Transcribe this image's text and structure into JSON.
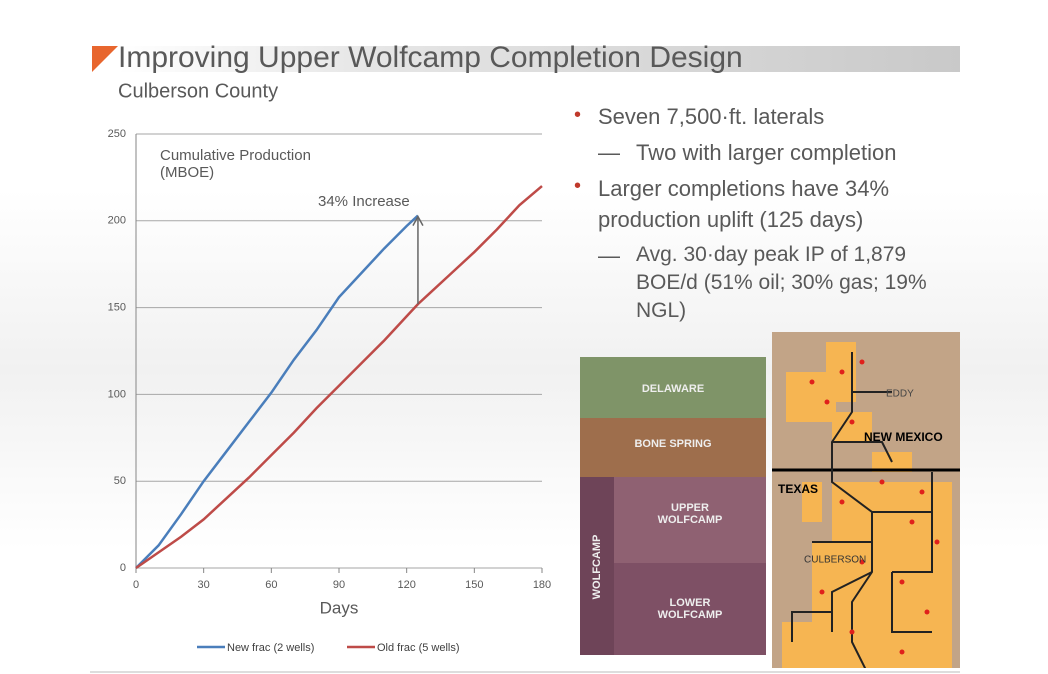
{
  "slide": {
    "title": "Improving Upper Wolfcamp Completion Design",
    "subtitle": "Culberson County",
    "bullets": [
      {
        "text": "Seven 7,500·ft. laterals",
        "sub": [
          "Two with larger completion"
        ]
      },
      {
        "text": "Larger completions have 34% production uplift (125 days)",
        "sub": [
          "Avg. 30·day peak IP of 1,879 BOE/d (51% oil; 30% gas; 19% NGL)"
        ]
      }
    ]
  },
  "chart_data": {
    "type": "line",
    "annotations": [
      "Cumulative Production (MBOE)",
      "34% Increase"
    ],
    "x_label": "Days",
    "x": [
      0,
      10,
      20,
      30,
      40,
      50,
      60,
      70,
      80,
      90,
      100,
      110,
      120,
      125,
      130,
      140,
      150,
      160,
      170,
      180
    ],
    "series": [
      {
        "name": "New frac (2 wells)",
        "color": "#4a7ebb",
        "values": [
          0,
          13,
          31,
          50,
          67,
          84,
          101,
          120,
          137,
          156,
          170,
          184,
          197,
          203,
          null,
          null,
          null,
          null,
          null,
          null
        ]
      },
      {
        "name": "Old frac (5 wells)",
        "color": "#be4b48",
        "values": [
          0,
          9,
          18,
          28,
          40,
          52,
          65,
          78,
          92,
          105,
          118,
          131,
          145,
          152,
          158,
          170,
          182,
          195,
          209,
          220
        ]
      }
    ],
    "xlim": [
      0,
      180
    ],
    "xticks": [
      0,
      30,
      60,
      90,
      120,
      150,
      180
    ],
    "ylim": [
      0,
      250
    ],
    "yticks": [
      0,
      50,
      100,
      150,
      200,
      250
    ],
    "grid": true,
    "legend": "bottom"
  },
  "strat": {
    "layers": [
      "DELAWARE",
      "BONE SPRING",
      "UPPER WOLFCAMP",
      "LOWER WOLFCAMP"
    ],
    "group": "WOLFCAMP"
  },
  "map": {
    "labels": [
      "EDDY",
      "NEW MEXICO",
      "TEXAS",
      "CULBERSON"
    ]
  }
}
